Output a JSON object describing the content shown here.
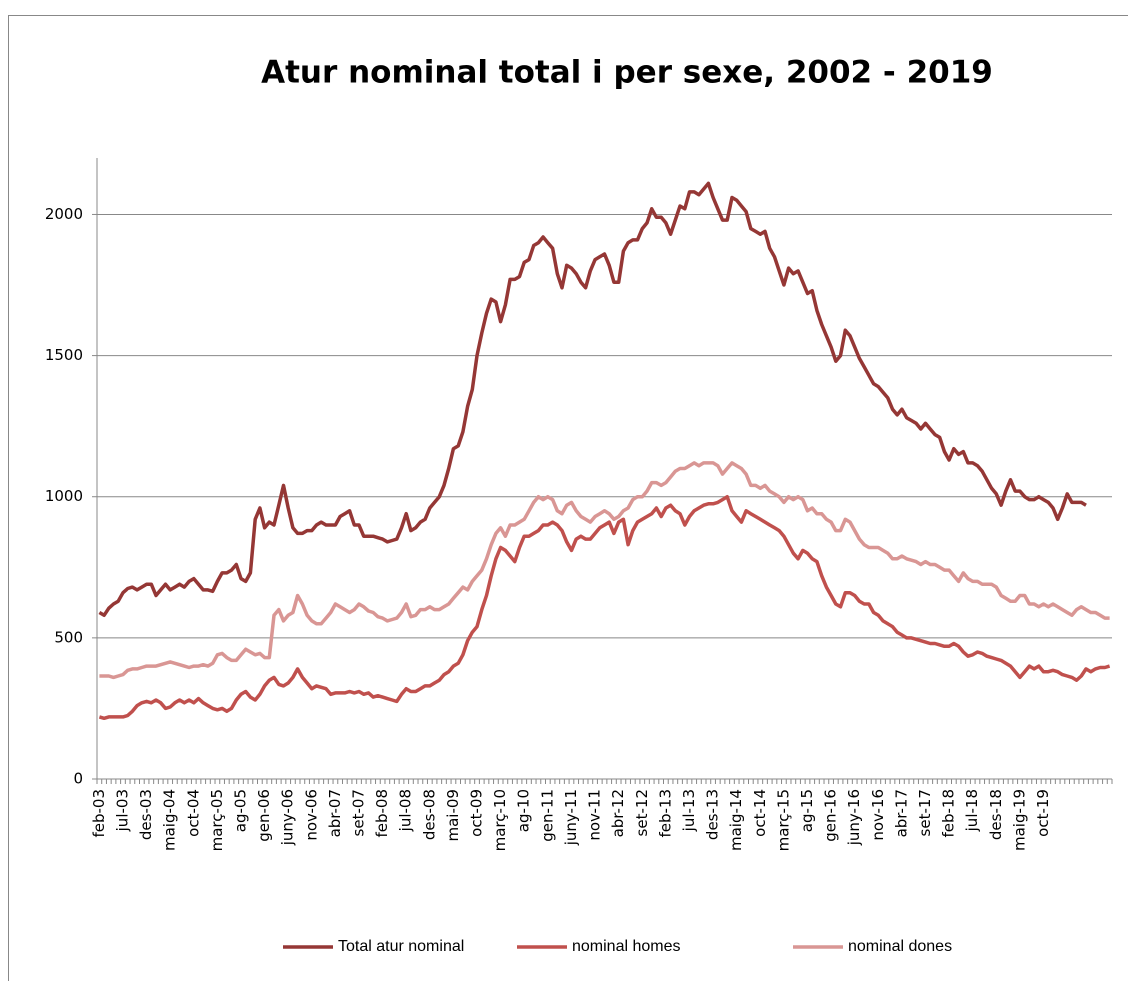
{
  "chart_data": {
    "type": "line",
    "title": "Atur nominal total i per sexe, 2002 - 2019",
    "categories": [
      "feb-03",
      null,
      null,
      null,
      null,
      "jul-03",
      null,
      null,
      null,
      null,
      "des-03",
      null,
      null,
      null,
      null,
      "maig-04",
      null,
      null,
      null,
      null,
      "oct-04",
      null,
      null,
      null,
      null,
      "març-05",
      null,
      null,
      null,
      null,
      "ag-05",
      null,
      null,
      null,
      null,
      "gen-06",
      null,
      null,
      null,
      null,
      "juny-06",
      null,
      null,
      null,
      null,
      "nov-06",
      null,
      null,
      null,
      null,
      "abr-07",
      null,
      null,
      null,
      null,
      "set-07",
      null,
      null,
      null,
      null,
      "feb-08",
      null,
      null,
      null,
      null,
      "jul-08",
      null,
      null,
      null,
      null,
      "des-08",
      null,
      null,
      null,
      null,
      "mai-09",
      null,
      null,
      null,
      null,
      "oct-09",
      null,
      null,
      null,
      null,
      "març-10",
      null,
      null,
      null,
      null,
      "ag-10",
      null,
      null,
      null,
      null,
      "gen-11",
      null,
      null,
      null,
      null,
      "juny-11",
      null,
      null,
      null,
      null,
      "nov-11",
      null,
      null,
      null,
      null,
      "abr-12",
      null,
      null,
      null,
      null,
      "set-12",
      null,
      null,
      null,
      null,
      "feb-13",
      null,
      null,
      null,
      null,
      "jul-13",
      null,
      null,
      null,
      null,
      "des-13",
      null,
      null,
      null,
      null,
      "maig-14",
      null,
      null,
      null,
      null,
      "oct-14",
      null,
      null,
      null,
      null,
      "març-15",
      null,
      null,
      null,
      null,
      "ag-15",
      null,
      null,
      null,
      null,
      "gen-16",
      null,
      null,
      null,
      null,
      "juny-16",
      null,
      null,
      null,
      null,
      "nov-16",
      null,
      null,
      null,
      null,
      "abr-17",
      null,
      null,
      null,
      null,
      "set-17",
      null,
      null,
      null,
      null,
      "feb-18",
      null,
      null,
      null,
      null,
      "jul-18",
      null,
      null,
      null,
      null,
      "des-18",
      null,
      null,
      null,
      null,
      "maig-19",
      null,
      null,
      null,
      null,
      "oct-19",
      null,
      null,
      null,
      null,
      null,
      null,
      null,
      null,
      null,
      null,
      null,
      null,
      null,
      null
    ],
    "series": [
      {
        "name": "Total atur nominal",
        "color": "#953735",
        "values": [
          590,
          580,
          605,
          620,
          630,
          660,
          675,
          680,
          670,
          680,
          690,
          690,
          650,
          670,
          690,
          670,
          680,
          690,
          680,
          700,
          710,
          690,
          670,
          670,
          665,
          700,
          730,
          730,
          740,
          760,
          710,
          700,
          730,
          920,
          960,
          890,
          910,
          900,
          970,
          1040,
          960,
          890,
          870,
          870,
          880,
          880,
          900,
          910,
          900,
          900,
          900,
          930,
          940,
          950,
          900,
          900,
          860,
          860,
          860,
          855,
          850,
          840,
          845,
          850,
          890,
          940,
          880,
          890,
          910,
          920,
          960,
          980,
          1000,
          1040,
          1100,
          1170,
          1180,
          1230,
          1320,
          1380,
          1500,
          1580,
          1650,
          1700,
          1690,
          1620,
          1680,
          1770,
          1770,
          1780,
          1830,
          1840,
          1890,
          1900,
          1920,
          1900,
          1880,
          1790,
          1740,
          1820,
          1810,
          1790,
          1760,
          1740,
          1800,
          1840,
          1850,
          1860,
          1820,
          1760,
          1760,
          1870,
          1900,
          1910,
          1910,
          1950,
          1970,
          2020,
          1990,
          1990,
          1970,
          1930,
          1980,
          2030,
          2020,
          2080,
          2080,
          2070,
          2090,
          2110,
          2060,
          2020,
          1980,
          1980,
          2060,
          2050,
          2030,
          2010,
          1950,
          1940,
          1930,
          1940,
          1880,
          1850,
          1800,
          1750,
          1810,
          1790,
          1800,
          1760,
          1720,
          1730,
          1660,
          1610,
          1570,
          1530,
          1480,
          1500,
          1590,
          1570,
          1530,
          1490,
          1460,
          1430,
          1400,
          1390,
          1370,
          1350,
          1310,
          1290,
          1310,
          1280,
          1270,
          1260,
          1240,
          1260,
          1240,
          1220,
          1210,
          1160,
          1130,
          1170,
          1150,
          1160,
          1120,
          1120,
          1110,
          1090,
          1060,
          1030,
          1010,
          970,
          1020,
          1060,
          1020,
          1020,
          1000,
          990,
          990,
          1000,
          990,
          980,
          960,
          920,
          960,
          1010,
          980,
          980,
          980,
          970,
          null,
          null,
          null,
          null,
          null
        ]
      },
      {
        "name": "nominal homes",
        "color": "#c0504d",
        "values": [
          220,
          215,
          220,
          220,
          220,
          220,
          225,
          240,
          260,
          270,
          275,
          270,
          280,
          270,
          250,
          255,
          270,
          280,
          270,
          280,
          270,
          285,
          270,
          260,
          250,
          245,
          250,
          240,
          250,
          280,
          300,
          310,
          290,
          280,
          300,
          330,
          350,
          360,
          335,
          330,
          340,
          360,
          390,
          360,
          340,
          320,
          330,
          325,
          320,
          300,
          305,
          305,
          305,
          310,
          305,
          310,
          300,
          305,
          290,
          295,
          290,
          285,
          280,
          275,
          300,
          320,
          310,
          310,
          320,
          330,
          330,
          340,
          350,
          370,
          380,
          400,
          410,
          440,
          490,
          520,
          540,
          600,
          650,
          720,
          780,
          820,
          810,
          790,
          770,
          820,
          860,
          860,
          870,
          880,
          900,
          900,
          910,
          900,
          880,
          840,
          810,
          850,
          860,
          850,
          850,
          870,
          890,
          900,
          910,
          870,
          910,
          920,
          830,
          880,
          910,
          920,
          930,
          940,
          960,
          930,
          960,
          970,
          950,
          940,
          900,
          930,
          950,
          960,
          970,
          975,
          975,
          980,
          990,
          1000,
          950,
          930,
          910,
          950,
          940,
          930,
          920,
          910,
          900,
          890,
          880,
          860,
          830,
          800,
          780,
          810,
          800,
          780,
          770,
          720,
          680,
          650,
          620,
          610,
          660,
          660,
          650,
          630,
          620,
          620,
          590,
          580,
          560,
          550,
          540,
          520,
          510,
          500,
          500,
          495,
          490,
          485,
          480,
          480,
          475,
          470,
          470,
          480,
          470,
          450,
          435,
          440,
          450,
          445,
          435,
          430,
          425,
          420,
          410,
          400,
          380,
          360,
          380,
          400,
          390,
          400,
          380,
          380,
          385,
          380,
          370,
          365,
          360,
          350,
          365,
          390,
          380,
          390,
          395,
          395,
          400
        ]
      },
      {
        "name": "nominal dones",
        "color": "#d99694",
        "values": [
          365,
          365,
          365,
          360,
          365,
          370,
          385,
          390,
          390,
          395,
          400,
          400,
          400,
          405,
          410,
          415,
          410,
          405,
          400,
          395,
          400,
          400,
          405,
          400,
          410,
          440,
          445,
          430,
          420,
          420,
          440,
          460,
          450,
          440,
          445,
          430,
          430,
          580,
          600,
          560,
          580,
          590,
          650,
          620,
          580,
          560,
          550,
          550,
          570,
          590,
          620,
          610,
          600,
          590,
          600,
          620,
          610,
          595,
          590,
          575,
          570,
          560,
          565,
          570,
          590,
          620,
          575,
          580,
          600,
          600,
          610,
          600,
          600,
          610,
          620,
          640,
          660,
          680,
          670,
          700,
          720,
          740,
          780,
          830,
          870,
          890,
          860,
          900,
          900,
          910,
          920,
          950,
          980,
          1000,
          990,
          1000,
          990,
          950,
          940,
          970,
          980,
          950,
          930,
          920,
          910,
          930,
          940,
          950,
          940,
          920,
          930,
          950,
          960,
          990,
          1000,
          1000,
          1020,
          1050,
          1050,
          1040,
          1050,
          1070,
          1090,
          1100,
          1100,
          1110,
          1120,
          1110,
          1120,
          1120,
          1120,
          1110,
          1080,
          1100,
          1120,
          1110,
          1100,
          1080,
          1040,
          1040,
          1030,
          1040,
          1020,
          1010,
          1000,
          980,
          1000,
          990,
          1000,
          990,
          950,
          960,
          940,
          940,
          920,
          910,
          880,
          880,
          920,
          910,
          880,
          850,
          830,
          820,
          820,
          820,
          810,
          800,
          780,
          780,
          790,
          780,
          775,
          770,
          760,
          770,
          760,
          760,
          750,
          740,
          740,
          720,
          700,
          730,
          710,
          700,
          700,
          690,
          690,
          690,
          680,
          650,
          640,
          630,
          630,
          650,
          650,
          620,
          620,
          610,
          620,
          610,
          620,
          610,
          600,
          590,
          580,
          600,
          610,
          600,
          590,
          590,
          580,
          570,
          570
        ]
      }
    ],
    "ylim": [
      0,
      2200
    ],
    "yticks": [
      0,
      500,
      1000,
      1500,
      2000
    ],
    "grid": true,
    "legend": "bottom"
  }
}
